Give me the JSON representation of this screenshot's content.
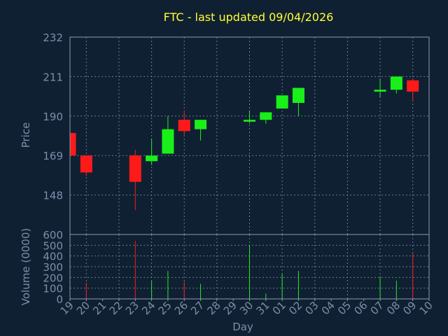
{
  "chart_data": {
    "type": "candlestick",
    "title": "FTC - last updated 09/04/2026",
    "xlabel": "Day",
    "ylabel_price": "Price",
    "ylabel_volume": "Volume (0000)",
    "x_ticks": [
      "19",
      "20",
      "21",
      "22",
      "23",
      "24",
      "25",
      "26",
      "27",
      "28",
      "29",
      "30",
      "31",
      "01",
      "02",
      "03",
      "04",
      "05",
      "06",
      "07",
      "08",
      "09",
      "10"
    ],
    "price_ticks": [
      148,
      169,
      190,
      211,
      232
    ],
    "price_range": [
      127,
      232
    ],
    "volume_ticks": [
      0,
      100,
      200,
      300,
      400,
      500,
      600
    ],
    "volume_range": [
      0,
      600
    ],
    "candles": [
      {
        "day": "19",
        "open": 181,
        "close": 169,
        "high": 181,
        "low": 169,
        "volume": 0
      },
      {
        "day": "20",
        "open": 169,
        "close": 160,
        "high": 169,
        "low": 158,
        "volume": 150
      },
      {
        "day": "23",
        "open": 169,
        "close": 155,
        "high": 172,
        "low": 140,
        "volume": 540
      },
      {
        "day": "24",
        "open": 166,
        "close": 169,
        "high": 178,
        "low": 164,
        "volume": 170
      },
      {
        "day": "25",
        "open": 170,
        "close": 183,
        "high": 190,
        "low": 170,
        "volume": 260
      },
      {
        "day": "26",
        "open": 188,
        "close": 182,
        "high": 193,
        "low": 180,
        "volume": 160
      },
      {
        "day": "27",
        "open": 183,
        "close": 188,
        "high": 188,
        "low": 177,
        "volume": 140
      },
      {
        "day": "30",
        "open": 187,
        "close": 188,
        "high": 193,
        "low": 186,
        "volume": 500
      },
      {
        "day": "31",
        "open": 188,
        "close": 192,
        "high": 192,
        "low": 186,
        "volume": 50
      },
      {
        "day": "01",
        "open": 194,
        "close": 201,
        "high": 201,
        "low": 194,
        "volume": 230
      },
      {
        "day": "02",
        "open": 197,
        "close": 205,
        "high": 205,
        "low": 190,
        "volume": 260
      },
      {
        "day": "07",
        "open": 203,
        "close": 204,
        "high": 210,
        "low": 200,
        "volume": 210
      },
      {
        "day": "08",
        "open": 204,
        "close": 211,
        "high": 211,
        "low": 202,
        "volume": 170
      },
      {
        "day": "09",
        "open": 209,
        "close": 203,
        "high": 210,
        "low": 198,
        "volume": 430
      }
    ],
    "colors": {
      "background": "#102033",
      "axis": "#8a9bb2",
      "grid": "#6a7a90",
      "up": "#19f019",
      "down": "#ff1a1a",
      "title": "#ffff33",
      "text": "#7a8fa8"
    },
    "grid": true
  }
}
